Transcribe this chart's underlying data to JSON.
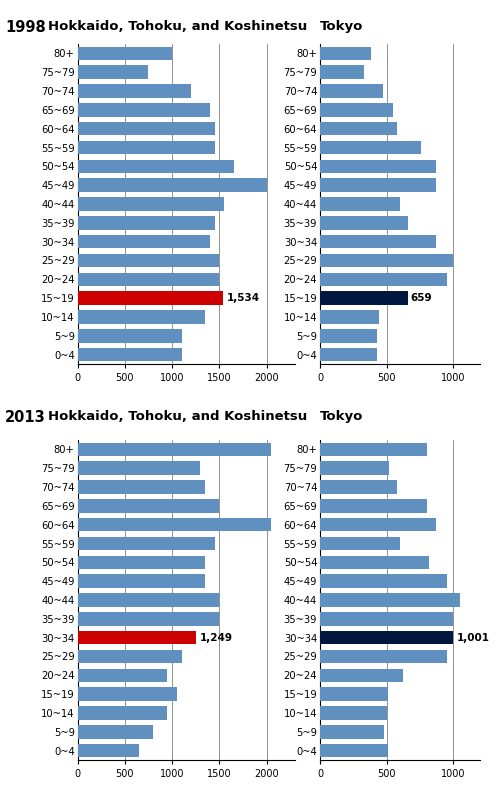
{
  "age_groups": [
    "0~4",
    "5~9",
    "10~14",
    "15~19",
    "20~24",
    "25~29",
    "30~34",
    "35~39",
    "40~44",
    "45~49",
    "50~54",
    "55~59",
    "60~64",
    "65~69",
    "70~74",
    "75~79",
    "80+"
  ],
  "rural_1998": [
    1100,
    1100,
    1350,
    1534,
    1500,
    1500,
    1400,
    1450,
    1550,
    2000,
    1650,
    1450,
    1450,
    1400,
    1200,
    750,
    1000
  ],
  "rural_2013": [
    650,
    800,
    950,
    1050,
    950,
    1100,
    1249,
    1500,
    1500,
    1350,
    1350,
    1450,
    2050,
    1500,
    1350,
    1300,
    2050
  ],
  "tokyo_1998": [
    430,
    430,
    440,
    659,
    950,
    1000,
    870,
    660,
    600,
    870,
    870,
    760,
    580,
    550,
    470,
    330,
    380
  ],
  "tokyo_2013": [
    510,
    480,
    500,
    510,
    620,
    950,
    1001,
    1000,
    1050,
    950,
    820,
    600,
    870,
    800,
    580,
    520,
    800
  ],
  "rural_highlight_1998_idx": 3,
  "rural_highlight_2013_idx": 6,
  "tokyo_highlight_1998_idx": 3,
  "tokyo_highlight_2013_idx": 6,
  "rural_label_1998": "1,534",
  "rural_label_2013": "1,249",
  "tokyo_label_1998": "659",
  "tokyo_label_2013": "1,001",
  "bar_color": "#6090c0",
  "red_color": "#cc0000",
  "navy_color": "#001840",
  "year1": "1998",
  "year2": "2013",
  "rural_title": "Hokkaido, Tohoku, and Koshinetsu",
  "tokyo_title": "Tokyo",
  "rural_xlim": [
    0,
    2300
  ],
  "tokyo_xlim": [
    0,
    1200
  ],
  "rural_xticks": [
    0,
    500,
    1000,
    1500,
    2000
  ],
  "tokyo_xticks": [
    0,
    500,
    1000
  ]
}
